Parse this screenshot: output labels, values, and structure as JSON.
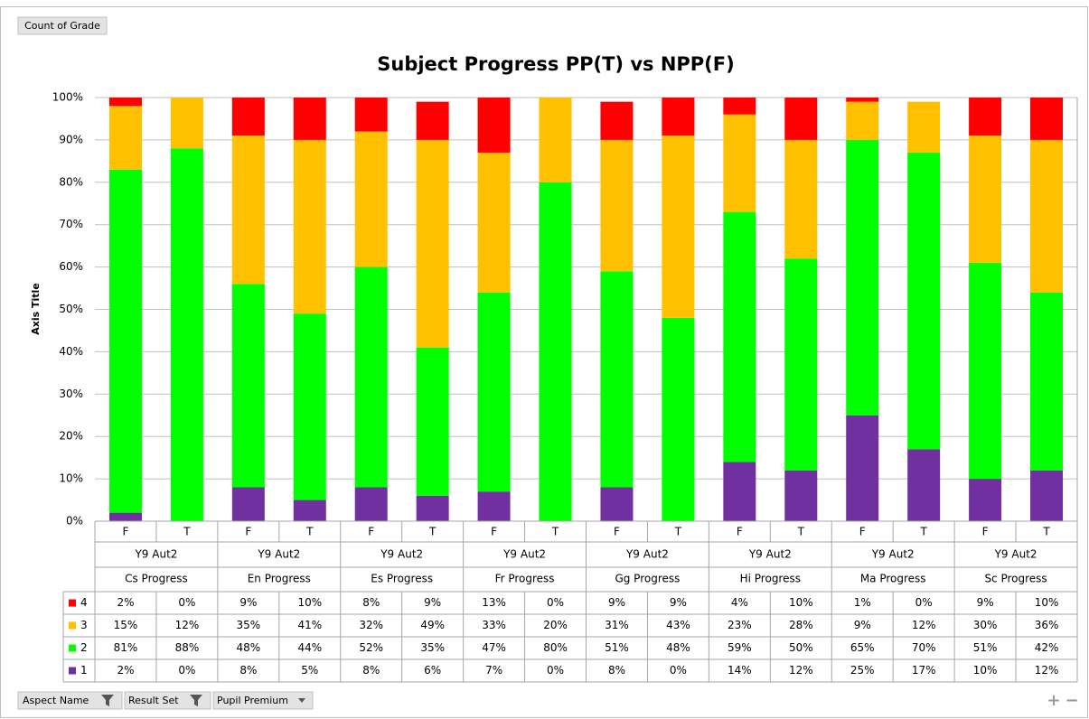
{
  "ui": {
    "field_button": "Count of Grade",
    "filters": [
      "Aspect Name",
      "Result Set",
      "Pupil Premium"
    ],
    "zoom": [
      "+",
      "−"
    ]
  },
  "chart_data": {
    "type": "stacked_bar",
    "title": "Subject Progress PP(T)  vs NPP(F)",
    "y_label": "Axis Title",
    "categories": [
      "F",
      "T",
      "F",
      "T",
      "F",
      "T",
      "F",
      "T",
      "F",
      "T",
      "F",
      "T",
      "F",
      "T",
      "F",
      "T"
    ],
    "groups": [
      "Y9 Aut2",
      "Y9 Aut2",
      "Y9 Aut2",
      "Y9 Aut2",
      "Y9 Aut2",
      "Y9 Aut2",
      "Y9 Aut2",
      "Y9 Aut2"
    ],
    "subjects": [
      "Cs Progress",
      "En Progress",
      "Es Progress",
      "Fr Progress",
      "Gg Progress",
      "Hi Progress",
      "Ma Progress",
      "Sc Progress"
    ],
    "series": [
      {
        "name": "1",
        "color": "#7030a0",
        "values": [
          2,
          0,
          8,
          5,
          8,
          6,
          7,
          0,
          8,
          0,
          14,
          12,
          25,
          17,
          10,
          12
        ],
        "value_labels": [
          "2%",
          "0%",
          "8%",
          "5%",
          "8%",
          "6%",
          "7%",
          "0%",
          "8%",
          "0%",
          "14%",
          "12%",
          "25%",
          "17%",
          "10%",
          "12%"
        ]
      },
      {
        "name": "2",
        "color": "#00ff00",
        "values": [
          81,
          88,
          48,
          44,
          52,
          35,
          47,
          80,
          51,
          48,
          59,
          50,
          65,
          70,
          51,
          42
        ],
        "value_labels": [
          "81%",
          "88%",
          "48%",
          "44%",
          "52%",
          "35%",
          "47%",
          "80%",
          "51%",
          "48%",
          "59%",
          "50%",
          "65%",
          "70%",
          "51%",
          "42%"
        ]
      },
      {
        "name": "3",
        "color": "#ffc000",
        "values": [
          15,
          12,
          35,
          41,
          32,
          49,
          33,
          20,
          31,
          43,
          23,
          28,
          9,
          12,
          30,
          36
        ],
        "value_labels": [
          "15%",
          "12%",
          "35%",
          "41%",
          "32%",
          "49%",
          "33%",
          "20%",
          "31%",
          "43%",
          "23%",
          "28%",
          "9%",
          "12%",
          "30%",
          "36%"
        ]
      },
      {
        "name": "4",
        "color": "#ff0000",
        "values": [
          2,
          0,
          9,
          10,
          8,
          9,
          13,
          0,
          9,
          9,
          4,
          10,
          1,
          0,
          9,
          10
        ],
        "value_labels": [
          "2%",
          "0%",
          "9%",
          "10%",
          "8%",
          "9%",
          "13%",
          "0%",
          "9%",
          "9%",
          "4%",
          "10%",
          "1%",
          "0%",
          "9%",
          "10%"
        ]
      }
    ],
    "ylim": [
      0,
      100
    ],
    "yticks": [
      {
        "value": 0,
        "label": "0%"
      },
      {
        "value": 10,
        "label": "10%"
      },
      {
        "value": 20,
        "label": "20%"
      },
      {
        "value": 30,
        "label": "30%"
      },
      {
        "value": 40,
        "label": "40%"
      },
      {
        "value": 50,
        "label": "50%"
      },
      {
        "value": 60,
        "label": "60%"
      },
      {
        "value": 70,
        "label": "70%"
      },
      {
        "value": 80,
        "label": "80%"
      },
      {
        "value": 90,
        "label": "90%"
      },
      {
        "value": 100,
        "label": "100%"
      }
    ],
    "grid": true
  }
}
